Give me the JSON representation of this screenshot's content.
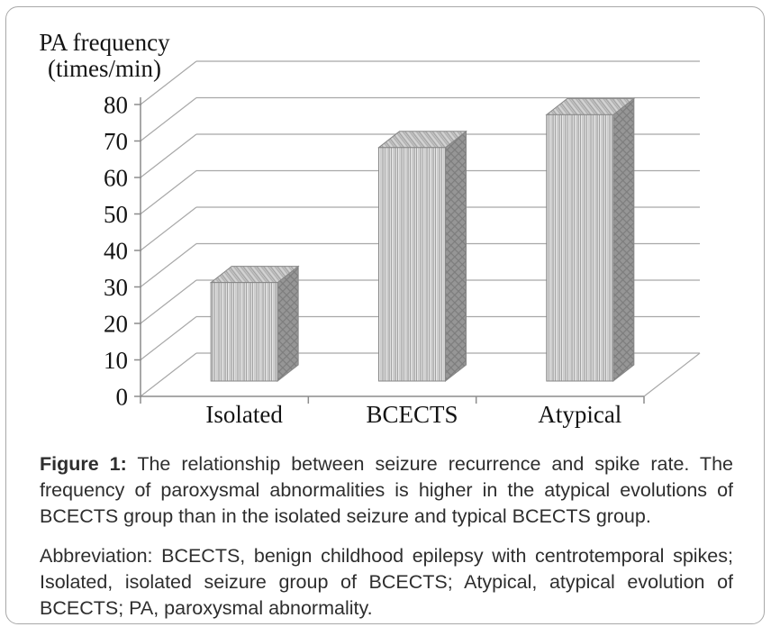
{
  "figure": {
    "border_color": "#a8a8a8",
    "background": "#ffffff"
  },
  "chart_data": {
    "type": "bar",
    "projection": "3d-column",
    "title_lines": [
      "PA frequency",
      "(times/min)"
    ],
    "ylabel": "PA frequency (times/min)",
    "xlabel": "",
    "categories": [
      "Isolated",
      "BCECTS",
      "Atypical"
    ],
    "values": [
      27,
      64,
      73
    ],
    "ylim": [
      0,
      80
    ],
    "yticks": [
      0,
      10,
      20,
      30,
      40,
      50,
      60,
      70,
      80
    ],
    "grid": true,
    "legend": false,
    "colors": {
      "bar_front": "#d6d6d6",
      "bar_top": "#c6c6c6",
      "bar_side": "#969696",
      "gridline": "#a8a8a8",
      "axis": "#8c8c8c",
      "text": "#141414"
    }
  },
  "caption": {
    "label": "Figure 1:",
    "text": "The relationship between seizure recurrence and spike rate. The frequency of paroxysmal abnormalities is higher in the atypical evolutions of BCECTS group than in the isolated seizure and typical BCECTS group.",
    "abbreviation": "Abbreviation: BCECTS, benign childhood epilepsy with centrotemporal spikes; Isolated, isolated seizure group of BCECTS; Atypical, atypical evolution of BCECTS; PA, paroxysmal abnormality."
  }
}
